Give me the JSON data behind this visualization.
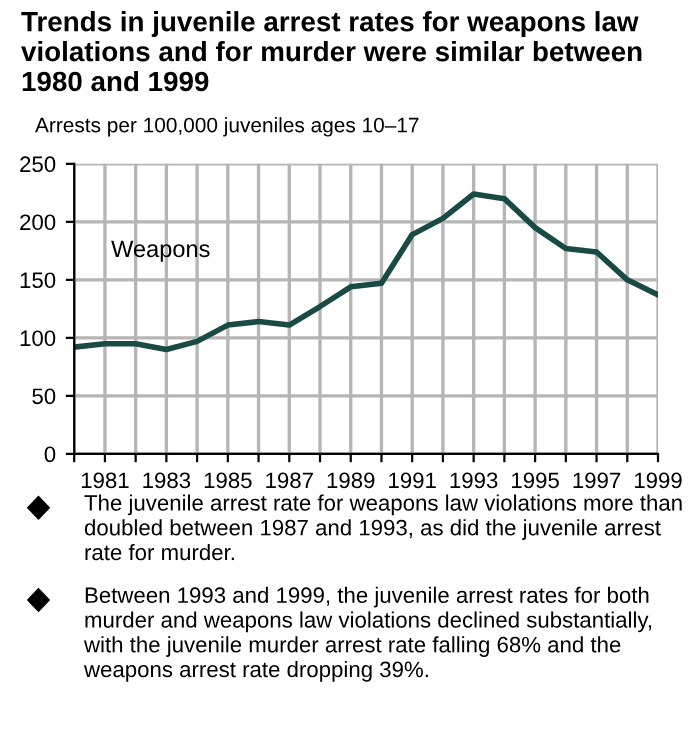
{
  "chart_data": {
    "type": "line",
    "title": "Trends in juvenile arrest rates for weapons law violations and for murder were similar between 1980 and 1999",
    "ylabel": "Arrests per 100,000 juveniles ages 10–17",
    "x": [
      1980,
      1981,
      1982,
      1983,
      1984,
      1985,
      1986,
      1987,
      1988,
      1989,
      1990,
      1991,
      1992,
      1993,
      1994,
      1995,
      1996,
      1997,
      1998,
      1999
    ],
    "series": [
      {
        "name": "Weapons",
        "color": "#1a4a45",
        "values": [
          92,
          95,
          95,
          90,
          97,
          111,
          114,
          111,
          127,
          144,
          147,
          189,
          203,
          224,
          220,
          195,
          177,
          174,
          150,
          137
        ]
      }
    ],
    "xlim": [
      1980,
      1999
    ],
    "ylim": [
      0,
      250
    ],
    "yticks": [
      0,
      50,
      100,
      150,
      200,
      250
    ],
    "xticks": [
      {
        "value": 1980,
        "label": null
      },
      1981,
      {
        "value": 1982,
        "label": null
      },
      1983,
      {
        "value": 1984,
        "label": null
      },
      1985,
      {
        "value": 1986,
        "label": null
      },
      1987,
      {
        "value": 1988,
        "label": null
      },
      1989,
      {
        "value": 1990,
        "label": null
      },
      1991,
      {
        "value": 1992,
        "label": null
      },
      1993,
      {
        "value": 1994,
        "label": null
      },
      1995,
      {
        "value": 1996,
        "label": null
      },
      1997,
      {
        "value": 1998,
        "label": null
      },
      1999
    ],
    "grid": true,
    "line_style": "solid",
    "marker": "none",
    "annotations": [
      "The juvenile arrest rate for weapons law violations more than doubled between 1987 and 1993, as did the juvenile arrest rate for murder.",
      "Between 1993 and 1999, the juvenile arrest rates for both murder and weapons law violations declined substantially, with the juvenile murder arrest rate falling 68% and the weapons arrest rate dropping 39%."
    ]
  }
}
